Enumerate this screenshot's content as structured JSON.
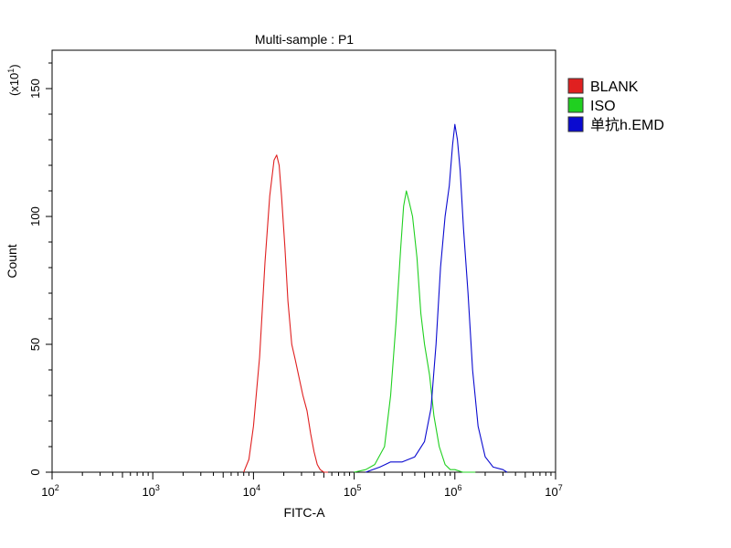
{
  "chart_data": {
    "type": "line",
    "title": "Multi-sample : P1",
    "xlabel": "FITC-A",
    "ylabel": "Count",
    "y_multiplier_label": "(x10",
    "y_multiplier_exp": "1",
    "y_multiplier_close": ")",
    "xscale": "log",
    "xlim": [
      100,
      10000000
    ],
    "ylim": [
      0,
      165
    ],
    "grid": false,
    "legend_position": "right",
    "x_ticks": [
      {
        "base": "10",
        "exp": "2"
      },
      {
        "base": "10",
        "exp": "3"
      },
      {
        "base": "10",
        "exp": "4"
      },
      {
        "base": "10",
        "exp": "5"
      },
      {
        "base": "10",
        "exp": "6"
      },
      {
        "base": "10",
        "exp": "7"
      }
    ],
    "y_ticks": [
      "0",
      "50",
      "100",
      "150"
    ],
    "series": [
      {
        "name": "BLANK",
        "color": "#e02020",
        "x": [
          8000,
          9000,
          10000,
          11500,
          13000,
          14500,
          16000,
          17000,
          18000,
          19000,
          20500,
          22000,
          24000,
          26000,
          28000,
          31000,
          34000,
          37000,
          40000,
          43000,
          46000,
          50000,
          55000
        ],
        "y": [
          0,
          5,
          18,
          45,
          82,
          108,
          122,
          124,
          120,
          108,
          88,
          67,
          50,
          44,
          38,
          30,
          24,
          15,
          8,
          3,
          1,
          0,
          0
        ]
      },
      {
        "name": "ISO",
        "color": "#20d020",
        "x": [
          100000,
          130000,
          160000,
          200000,
          230000,
          260000,
          290000,
          310000,
          330000,
          350000,
          380000,
          420000,
          460000,
          500000,
          560000,
          620000,
          700000,
          800000,
          900000,
          1000000,
          1200000,
          1600000
        ],
        "y": [
          0,
          1,
          3,
          10,
          30,
          58,
          88,
          104,
          110,
          106,
          100,
          84,
          62,
          50,
          38,
          22,
          10,
          3,
          1,
          1,
          0,
          0
        ]
      },
      {
        "name": "单抗h.EMD",
        "color": "#0a0ad0",
        "x": [
          130000,
          180000,
          230000,
          300000,
          400000,
          500000,
          580000,
          650000,
          720000,
          800000,
          880000,
          950000,
          1000000,
          1060000,
          1130000,
          1220000,
          1350000,
          1500000,
          1700000,
          2000000,
          2400000,
          3000000,
          3300000
        ],
        "y": [
          0,
          2,
          4,
          4,
          6,
          12,
          25,
          50,
          80,
          100,
          112,
          128,
          136,
          130,
          118,
          95,
          70,
          40,
          18,
          6,
          2,
          1,
          0
        ]
      }
    ]
  }
}
